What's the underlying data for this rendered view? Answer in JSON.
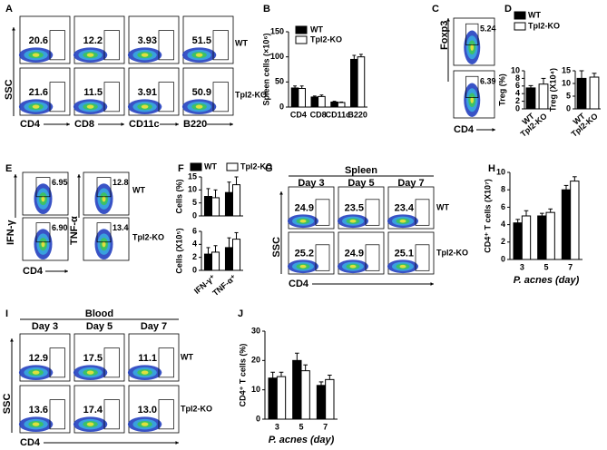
{
  "panel_labels": [
    "A",
    "B",
    "C",
    "D",
    "E",
    "F",
    "G",
    "H",
    "I",
    "J"
  ],
  "flow": {
    "A": {
      "y_label": "SSC",
      "x_labels": [
        "CD4",
        "CD8",
        "CD11c",
        "B220"
      ],
      "row_labels": [
        "WT",
        "Tpl2-KO"
      ],
      "gates": [
        [
          20.6,
          12.2,
          3.93,
          51.5
        ],
        [
          21.6,
          11.5,
          3.91,
          50.9
        ]
      ]
    },
    "C": {
      "y_label": "Foxp3",
      "x_labels": [
        "CD4"
      ],
      "gates": [
        [
          5.24
        ],
        [
          6.39
        ]
      ]
    },
    "E": {
      "y_labels": [
        "IFN-γ",
        "TNF-α"
      ],
      "x_labels": [
        "CD4"
      ],
      "row_labels": [
        "WT",
        "Tpl2-KO"
      ],
      "gates": [
        [
          6.95,
          12.8
        ],
        [
          {
            "value": 6.9,
            "label": "6.90"
          },
          13.4
        ]
      ]
    },
    "G": {
      "header": "Spleen",
      "columns": [
        "Day 3",
        "Day 5",
        "Day 7"
      ],
      "y_label": "SSC",
      "x_labels": [
        "CD4"
      ],
      "row_labels": [
        "WT",
        "Tpl2-KO"
      ],
      "gates": [
        [
          24.9,
          23.5,
          23.4
        ],
        [
          25.2,
          24.9,
          25.1
        ]
      ]
    },
    "I": {
      "header": "Blood",
      "columns": [
        "Day 3",
        "Day 5",
        "Day 7"
      ],
      "y_label": "SSC",
      "x_labels": [
        "CD4"
      ],
      "row_labels": [
        "WT",
        "Tpl2-KO"
      ],
      "gates": [
        [
          12.9,
          17.5,
          11.1
        ],
        [
          13.6,
          17.4,
          {
            "value": 13,
            "label": "13.0"
          }
        ]
      ]
    }
  },
  "legends": {
    "D": [
      {
        "name": "WT",
        "color": "#000000"
      },
      {
        "name": "Tpl2-KO",
        "color": "#ffffff"
      }
    ],
    "F": [
      {
        "name": "WT",
        "color": "#000000"
      },
      {
        "name": "Tpl2-KO",
        "color": "#ffffff"
      }
    ]
  },
  "chart_data": [
    {
      "type": "bar",
      "y_label": "Spleen cells (×10⁶)",
      "categories": [
        "CD4",
        "CD8",
        "CD11c",
        "B220"
      ],
      "series": [
        {
          "name": "WT",
          "color": "#000000",
          "values": [
            38,
            20,
            10,
            95
          ],
          "errors": [
            4,
            2,
            1.5,
            8
          ]
        },
        {
          "name": "Tpl2-KO",
          "color": "#ffffff",
          "values": [
            37,
            21,
            9,
            100
          ],
          "errors": [
            5,
            3,
            1,
            5
          ]
        }
      ],
      "ylim": [
        0,
        150
      ],
      "yticks": [
        0,
        50,
        100,
        150
      ]
    },
    {
      "type": "bar",
      "y_label": "Treg (%)",
      "categories": [
        "WT",
        "Tpl2-KO"
      ],
      "values": [
        5.5,
        6.5
      ],
      "errors": [
        0.6,
        1.5
      ],
      "colors": [
        "#000000",
        "#ffffff"
      ],
      "ylim": [
        0,
        10
      ],
      "yticks": [
        0,
        2,
        4,
        6,
        8,
        10
      ]
    },
    {
      "type": "bar",
      "y_label": "Treg (X10⁴)",
      "categories": [
        "WT",
        "Tpl2-KO"
      ],
      "values": [
        12,
        12.5
      ],
      "errors": [
        3,
        1.5
      ],
      "colors": [
        "#000000",
        "#ffffff"
      ],
      "ylim": [
        0,
        15
      ],
      "yticks": [
        0,
        5,
        10,
        15
      ]
    },
    {
      "type": "bar",
      "y_label": "Cells (%)",
      "categories": [
        null,
        null
      ],
      "series": [
        {
          "color": "#000000",
          "values": [
            7.5,
            9
          ],
          "errors": [
            3,
            4
          ]
        },
        {
          "color": "#ffffff",
          "values": [
            7,
            12
          ],
          "errors": [
            3,
            3
          ]
        }
      ],
      "ylim": [
        0,
        15
      ],
      "yticks": [
        0,
        5,
        10,
        15
      ]
    },
    {
      "type": "bar",
      "y_label": "Cells (X10⁵)",
      "categories": [
        "IFN-γ⁺",
        "TNF-α⁺"
      ],
      "series": [
        {
          "color": "#000000",
          "values": [
            2.5,
            3.5
          ],
          "errors": [
            1,
            1.5
          ]
        },
        {
          "color": "#ffffff",
          "values": [
            2.8,
            4.8
          ],
          "errors": [
            1,
            1
          ]
        }
      ],
      "ylim": [
        0,
        6
      ],
      "yticks": [
        0,
        2,
        4,
        6
      ]
    },
    {
      "type": "bar",
      "y_label": "CD4⁺ T cells (X10⁷)",
      "x_label": "P. acnes (day)",
      "categories": [
        "3",
        "5",
        "7"
      ],
      "series": [
        {
          "color": "#000000",
          "values": [
            4.2,
            5.0,
            8.0
          ],
          "errors": [
            0.4,
            0.3,
            0.5
          ]
        },
        {
          "color": "#ffffff",
          "values": [
            5.0,
            5.4,
            9.0
          ],
          "errors": [
            0.6,
            0.4,
            0.5
          ]
        }
      ],
      "ylim": [
        0,
        10
      ],
      "yticks": [
        0,
        2,
        4,
        6,
        8,
        10
      ]
    },
    {
      "type": "bar",
      "y_label": "CD4⁺ T cells (%)",
      "x_label": "P. acnes (day)",
      "categories": [
        "3",
        "5",
        "7"
      ],
      "series": [
        {
          "color": "#000000",
          "values": [
            14,
            20,
            11.5
          ],
          "errors": [
            2,
            2.5,
            1.2
          ]
        },
        {
          "color": "#ffffff",
          "values": [
            14.5,
            16.5,
            13.5
          ],
          "errors": [
            1.5,
            2,
            1.5
          ]
        }
      ],
      "ylim": [
        0,
        30
      ],
      "yticks": [
        0,
        10,
        20,
        30
      ]
    }
  ]
}
